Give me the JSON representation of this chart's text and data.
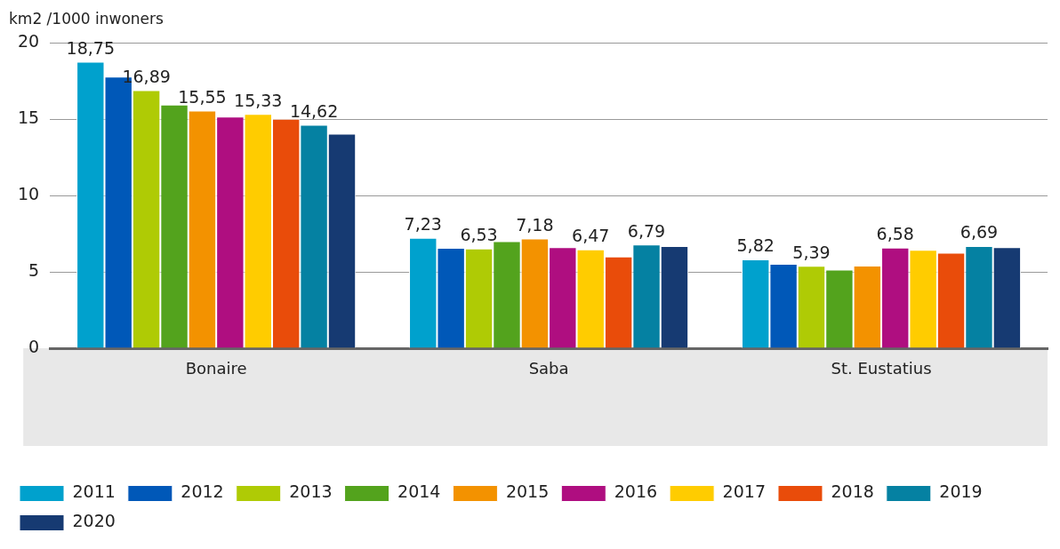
{
  "chart_data": {
    "type": "bar",
    "ylabel": "km2 /1000 inwoners",
    "categories": [
      "Bonaire",
      "Saba",
      "St. Eustatius"
    ],
    "ylim": [
      0,
      20
    ],
    "yticks": [
      0,
      5,
      10,
      15,
      20
    ],
    "grid": "y",
    "legend": "bottom",
    "series": [
      {
        "name": "2011",
        "color": "#00a1cd",
        "values": [
          18.75,
          7.23,
          5.82
        ],
        "value_labels": [
          "18,75",
          "7,23",
          "5,82"
        ]
      },
      {
        "name": "2012",
        "color": "#0058b8",
        "values": [
          17.78,
          6.57,
          5.52
        ],
        "value_labels": [
          null,
          null,
          null
        ]
      },
      {
        "name": "2013",
        "color": "#afcb05",
        "values": [
          16.89,
          6.53,
          5.39
        ],
        "value_labels": [
          "16,89",
          "6,53",
          "5,39"
        ]
      },
      {
        "name": "2014",
        "color": "#53a31d",
        "values": [
          15.94,
          7.0,
          5.15
        ],
        "value_labels": [
          null,
          null,
          null
        ]
      },
      {
        "name": "2015",
        "color": "#f39200",
        "values": [
          15.55,
          7.18,
          5.4
        ],
        "value_labels": [
          "15,55",
          "7,18",
          null
        ]
      },
      {
        "name": "2016",
        "color": "#af0e80",
        "values": [
          15.16,
          6.62,
          6.58
        ],
        "value_labels": [
          null,
          null,
          "6,58"
        ]
      },
      {
        "name": "2017",
        "color": "#ffcc00",
        "values": [
          15.33,
          6.47,
          6.44
        ],
        "value_labels": [
          "15,33",
          "6,47",
          null
        ]
      },
      {
        "name": "2018",
        "color": "#e94c0a",
        "values": [
          15.02,
          6.01,
          6.25
        ],
        "value_labels": [
          null,
          null,
          null
        ]
      },
      {
        "name": "2019",
        "color": "#0581a2",
        "values": [
          14.62,
          6.79,
          6.69
        ],
        "value_labels": [
          "14,62",
          "6,79",
          "6,69"
        ]
      },
      {
        "name": "2020",
        "color": "#163a72",
        "values": [
          14.04,
          6.68,
          6.61
        ],
        "value_labels": [
          null,
          null,
          null
        ]
      }
    ]
  }
}
